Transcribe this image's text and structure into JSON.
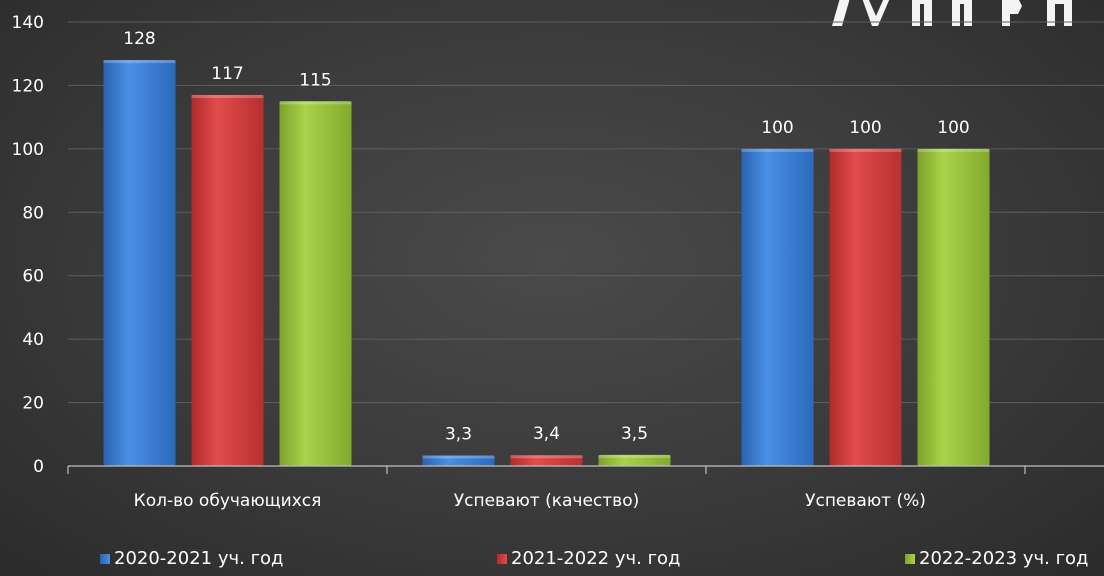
{
  "chart_data": {
    "type": "bar",
    "categories": [
      "Кол-во обучающихся",
      "Успевают (качество)",
      "Успевают (%)"
    ],
    "series": [
      {
        "name": "2020-2021 уч. год",
        "values": [
          128,
          3.3,
          100
        ],
        "labels": [
          "128",
          "3,3",
          "100"
        ],
        "color": "#3a7fd5"
      },
      {
        "name": "2021-2022 уч. год",
        "values": [
          117,
          3.4,
          100
        ],
        "labels": [
          "117",
          "3,4",
          "100"
        ],
        "color": "#d43b3b"
      },
      {
        "name": "2022-2023 уч. год",
        "values": [
          115,
          3.5,
          100
        ],
        "labels": [
          "115",
          "3,5",
          "100"
        ],
        "color": "#9ac43c"
      }
    ],
    "ylim": [
      0,
      140
    ],
    "yticks": [
      "0",
      "20",
      "40",
      "60",
      "80",
      "100",
      "120",
      "140"
    ],
    "grid": true,
    "legend_position": "bottom"
  }
}
